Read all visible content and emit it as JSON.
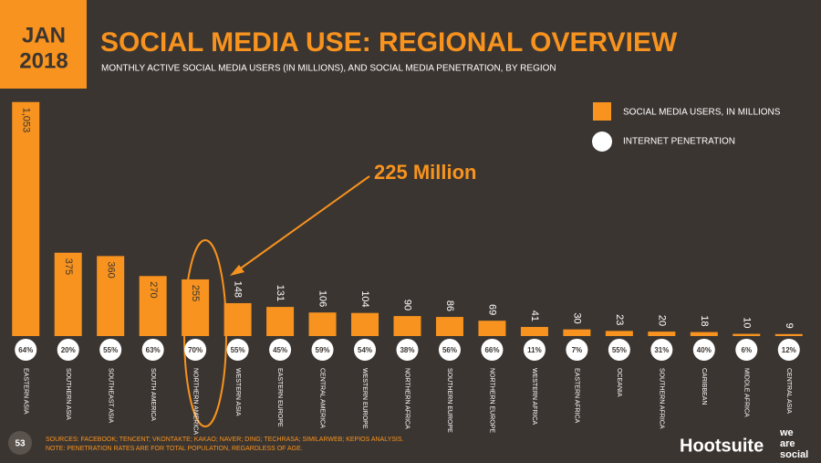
{
  "header": {
    "date_line1": "JAN",
    "date_line2": "2018",
    "page_number": "53"
  },
  "chart_data": {
    "type": "bar",
    "title": "SOCIAL MEDIA USE: REGIONAL OVERVIEW",
    "subtitle": "MONTHLY ACTIVE SOCIAL MEDIA USERS (IN MILLIONS), AND SOCIAL MEDIA PENETRATION, BY REGION",
    "annotation": "225  Million",
    "categories": [
      "EASTERN ASIA",
      "SOUTHERN ASIA",
      "SOUTHEAST ASIA",
      "SOUTH AMERICA",
      "NORTHERN AMERICA",
      "WESTERN ASIA",
      "EASTERN EUROPE",
      "CENTRAL AMERICA",
      "WESTERN EUROPE",
      "NORTHERN AFRICA",
      "SOUTHERN EUROPE",
      "NORTHERN EUROPE",
      "WESTERN AFRICA",
      "EASTERN AFRICA",
      "OCEANIA",
      "SOUTHERN AFRICA",
      "CARIBBEAN",
      "MIDDLE AFRICA",
      "CENTRAL ASIA"
    ],
    "series": [
      {
        "name": "SOCIAL MEDIA USERS, IN MILLIONS",
        "color": "#f7931e",
        "values": [
          1053,
          375,
          360,
          270,
          255,
          148,
          131,
          106,
          104,
          90,
          86,
          69,
          41,
          30,
          23,
          20,
          18,
          10,
          9
        ],
        "value_labels": [
          "1,053",
          "375",
          "360",
          "270",
          "255",
          "148",
          "131",
          "106",
          "104",
          "90",
          "86",
          "69",
          "41",
          "30",
          "23",
          "20",
          "18",
          "10",
          "9"
        ]
      },
      {
        "name": "INTERNET PENETRATION",
        "color": "#ffffff",
        "values": [
          64,
          20,
          55,
          63,
          70,
          55,
          45,
          59,
          54,
          38,
          56,
          66,
          11,
          7,
          55,
          31,
          40,
          6,
          12
        ],
        "value_labels": [
          "64%",
          "20%",
          "55%",
          "63%",
          "70%",
          "55%",
          "45%",
          "59%",
          "54%",
          "38%",
          "56%",
          "66%",
          "11%",
          "7%",
          "55%",
          "31%",
          "40%",
          "6%",
          "12%"
        ]
      }
    ],
    "ylim": [
      0,
      1060
    ]
  },
  "footer": {
    "sources": "SOURCES: FACEBOOK; TENCENT; VKONTAKTE; KAKAO; NAVER; DING; TECHRASA; SIMILARWEB; KEPIOS ANALYSIS.",
    "note": "NOTE: PENETRATION RATES ARE FOR TOTAL POPULATION, REGARDLESS OF AGE.",
    "logo_hootsuite": "Hootsuite",
    "logo_was_1": "we",
    "logo_was_2": "are",
    "logo_was_3": "social"
  }
}
